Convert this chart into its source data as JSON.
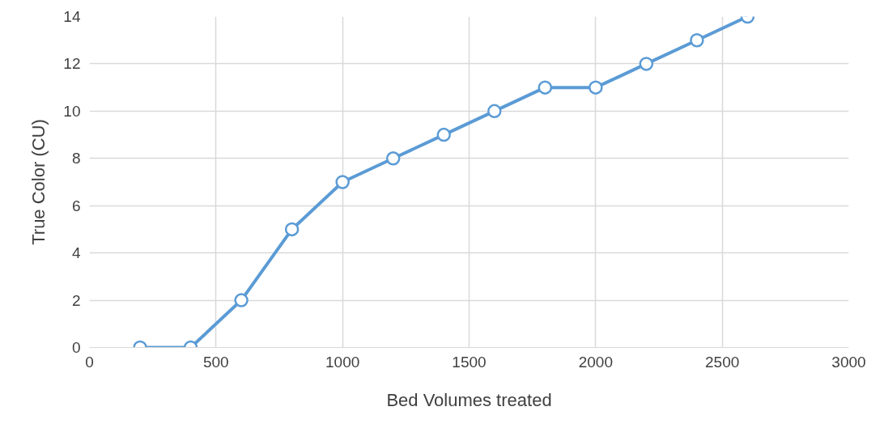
{
  "chart_data": {
    "type": "line",
    "xlabel": "Bed Volumes treated",
    "ylabel": "True Color (CU)",
    "x": [
      200,
      400,
      600,
      800,
      1000,
      1200,
      1400,
      1600,
      1800,
      2000,
      2200,
      2400,
      2600
    ],
    "series": [
      {
        "color": "#5b9bd5",
        "values": [
          0,
          0,
          2,
          5,
          7,
          8,
          9,
          10,
          11,
          11,
          12,
          13,
          14
        ]
      }
    ],
    "xlim": [
      0,
      3000
    ],
    "xticks": [
      0,
      500,
      1000,
      1500,
      2000,
      2500,
      3000
    ],
    "ylim": [
      0,
      14
    ],
    "yticks": [
      0,
      2,
      4,
      6,
      8,
      10,
      12,
      14
    ],
    "grid": true,
    "marker": "circle",
    "line_style": "solid"
  }
}
